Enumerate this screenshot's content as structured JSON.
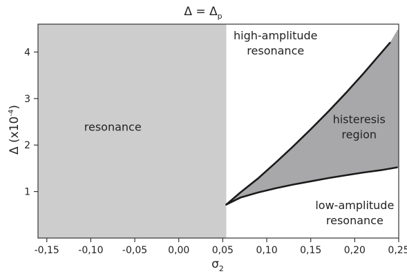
{
  "chart_data": {
    "type": "area",
    "title": "Δ = Δ",
    "title_subscript": "p",
    "xlabel": "σ",
    "xlabel_subscript": "2",
    "ylabel": "Δ (x10",
    "ylabel_superscript": "-4",
    "ylabel_suffix": ")",
    "xlim": [
      -0.16,
      0.25
    ],
    "ylim": [
      0,
      4.6
    ],
    "x_ticks": [
      -0.15,
      -0.1,
      -0.05,
      0.0,
      0.05,
      0.1,
      0.15,
      0.2,
      0.25
    ],
    "x_tick_labels": [
      "-0,15",
      "-0,10",
      "-0,05",
      "0,00",
      "0,05",
      "0,10",
      "0,15",
      "0,20",
      "0,25"
    ],
    "y_ticks": [
      1,
      2,
      3,
      4
    ],
    "y_tick_labels": [
      "1",
      "2",
      "3",
      "4"
    ],
    "grid": false,
    "regions": {
      "resonance": {
        "x_range": [
          -0.16,
          0.054
        ],
        "y_range": [
          0,
          4.6
        ],
        "color": "#cdcdce"
      },
      "histeresis": {
        "color": "#a8a8aa"
      }
    },
    "series": [
      {
        "role": "upper-boundary",
        "x": [
          0.054,
          0.07,
          0.09,
          0.11,
          0.13,
          0.15,
          0.17,
          0.19,
          0.21,
          0.23,
          0.24,
          0.248,
          0.25
        ],
        "y": [
          0.72,
          0.98,
          1.28,
          1.62,
          1.97,
          2.34,
          2.72,
          3.12,
          3.54,
          3.98,
          4.2,
          4.46,
          4.5
        ]
      },
      {
        "role": "lower-boundary",
        "x": [
          0.054,
          0.07,
          0.09,
          0.11,
          0.13,
          0.15,
          0.17,
          0.19,
          0.21,
          0.23,
          0.248
        ],
        "y": [
          0.72,
          0.87,
          0.98,
          1.07,
          1.15,
          1.22,
          1.29,
          1.35,
          1.41,
          1.46,
          1.52
        ]
      }
    ],
    "annotations": [
      {
        "name": "label-resonance",
        "lines": [
          "resonance"
        ],
        "x": -0.075,
        "y": 2.4
      },
      {
        "name": "label-high-amplitude",
        "lines": [
          "high-amplitude",
          "resonance"
        ],
        "x": 0.11,
        "y": 4.2
      },
      {
        "name": "label-histeresis",
        "lines": [
          "histeresis",
          "region"
        ],
        "x": 0.205,
        "y": 2.4
      },
      {
        "name": "label-low-amplitude",
        "lines": [
          "low-amplitude",
          "resonance"
        ],
        "x": 0.2,
        "y": 0.55
      }
    ]
  }
}
